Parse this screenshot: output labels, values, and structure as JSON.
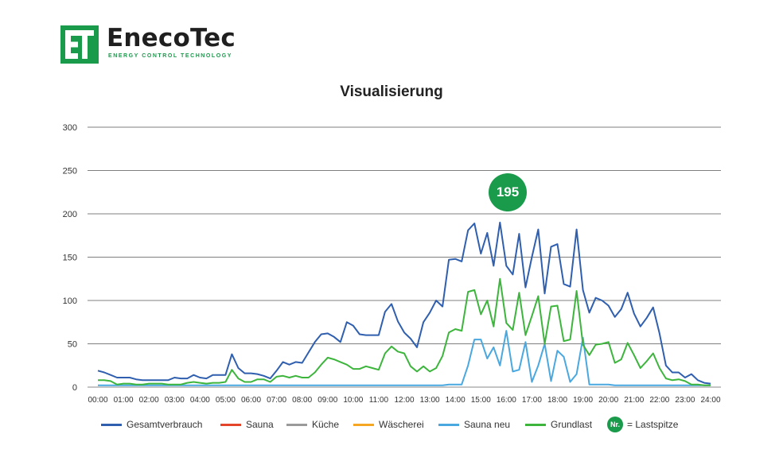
{
  "brand": {
    "name": "EnecoTec",
    "tagline": "ENERGY CONTROL TECHNOLOGY",
    "green": "#1a9a4b"
  },
  "chart_data": {
    "type": "line",
    "title": "Visualisierung",
    "ylim": [
      0,
      300
    ],
    "yticks": [
      0,
      50,
      100,
      150,
      200,
      250,
      300
    ],
    "grid": true,
    "legend_position": "bottom",
    "x_tick_labels": [
      "00:00",
      "01:00",
      "02:00",
      "03:00",
      "04:00",
      "05:00",
      "06:00",
      "07:00",
      "08:00",
      "09:00",
      "10:00",
      "11:00",
      "12:00",
      "13:00",
      "14:00",
      "15:00",
      "16:00",
      "17:00",
      "18:00",
      "19:00",
      "20:00",
      "21:00",
      "22:00",
      "23:00",
      "24:00"
    ],
    "x_hours": [
      0,
      0.25,
      0.5,
      0.75,
      1,
      1.25,
      1.5,
      1.75,
      2,
      2.25,
      2.5,
      2.75,
      3,
      3.25,
      3.5,
      3.75,
      4,
      4.25,
      4.5,
      4.75,
      5,
      5.25,
      5.5,
      5.75,
      6,
      6.25,
      6.5,
      6.75,
      7,
      7.25,
      7.5,
      7.75,
      8,
      8.25,
      8.5,
      8.75,
      9,
      9.25,
      9.5,
      9.75,
      10,
      10.25,
      10.5,
      10.75,
      11,
      11.25,
      11.5,
      11.75,
      12,
      12.25,
      12.5,
      12.75,
      13,
      13.25,
      13.5,
      13.75,
      14,
      14.25,
      14.5,
      14.75,
      15,
      15.25,
      15.5,
      15.75,
      16,
      16.25,
      16.5,
      16.75,
      17,
      17.25,
      17.5,
      17.75,
      18,
      18.25,
      18.5,
      18.75,
      19,
      19.25,
      19.5,
      19.75,
      20,
      20.25,
      20.5,
      20.75,
      21,
      21.25,
      21.5,
      21.75,
      22,
      22.25,
      22.5,
      22.75,
      23,
      23.25,
      23.5,
      23.75,
      24
    ],
    "series": [
      {
        "name": "Gesamtverbrauch",
        "color": "#2f5fae",
        "values": [
          19,
          17,
          14,
          11,
          11,
          11,
          9,
          8,
          8,
          8,
          8,
          8,
          11,
          10,
          10,
          14,
          11,
          10,
          14,
          14,
          14,
          38,
          22,
          16,
          16,
          15,
          13,
          10,
          19,
          29,
          26,
          29,
          28,
          40,
          52,
          61,
          62,
          58,
          52,
          75,
          71,
          61,
          60,
          60,
          60,
          87,
          96,
          76,
          63,
          56,
          46,
          75,
          86,
          100,
          93,
          147,
          148,
          145,
          181,
          189,
          154,
          178,
          140,
          190,
          140,
          130,
          177,
          115,
          150,
          182,
          108,
          162,
          165,
          119,
          116,
          182,
          112,
          86,
          103,
          100,
          94,
          81,
          90,
          109,
          85,
          70,
          80,
          92,
          62,
          25,
          17,
          17,
          11,
          15,
          8,
          5,
          4
        ],
        "values_note_suffix": ""
      },
      {
        "name": "Sauna",
        "color": "#e4452a",
        "values": []
      },
      {
        "name": "Küche",
        "color": "#9a9a9a",
        "values": []
      },
      {
        "name": "Wäscherei",
        "color": "#f5a623",
        "values": []
      },
      {
        "name": "Sauna neu",
        "color": "#4aa8e0",
        "values": [
          2,
          2,
          2,
          2,
          2,
          2,
          2,
          2,
          2,
          2,
          2,
          2,
          2,
          2,
          2,
          2,
          2,
          2,
          2,
          2,
          2,
          2,
          2,
          2,
          2,
          2,
          2,
          2,
          2,
          2,
          2,
          2,
          2,
          2,
          2,
          2,
          2,
          2,
          2,
          2,
          2,
          2,
          2,
          2,
          2,
          2,
          2,
          2,
          2,
          2,
          2,
          2,
          2,
          2,
          2,
          3,
          3,
          3,
          25,
          55,
          55,
          33,
          46,
          25,
          65,
          18,
          20,
          52,
          6,
          25,
          50,
          7,
          42,
          35,
          6,
          15,
          57,
          3,
          3,
          3,
          3,
          2,
          2,
          2,
          2,
          2,
          2,
          2,
          2,
          2,
          2,
          2,
          2,
          2,
          2,
          2,
          2
        ]
      },
      {
        "name": "Grundlast",
        "color": "#3db53d",
        "values": [
          8,
          8,
          7,
          3,
          4,
          4,
          3,
          3,
          4,
          4,
          4,
          3,
          3,
          3,
          5,
          6,
          5,
          4,
          5,
          5,
          6,
          20,
          10,
          6,
          6,
          9,
          9,
          6,
          12,
          13,
          11,
          13,
          11,
          11,
          17,
          26,
          34,
          32,
          29,
          26,
          21,
          21,
          24,
          22,
          20,
          39,
          47,
          41,
          39,
          24,
          18,
          24,
          18,
          22,
          36,
          63,
          67,
          65,
          110,
          112,
          84,
          100,
          70,
          125,
          74,
          66,
          109,
          60,
          82,
          105,
          50,
          93,
          94,
          53,
          55,
          111,
          49,
          37,
          49,
          50,
          52,
          28,
          32,
          51,
          37,
          22,
          30,
          39,
          22,
          10,
          8,
          9,
          7,
          3,
          3,
          2,
          2
        ]
      }
    ],
    "peak": {
      "value": 195,
      "hour": 16.25
    }
  },
  "legend": {
    "items": [
      "Gesamtverbrauch",
      "Sauna",
      "Küche",
      "Wäscherei",
      "Sauna neu",
      "Grundlast"
    ],
    "badge_label": "Nr.",
    "badge_text": "= Lastspitze"
  }
}
